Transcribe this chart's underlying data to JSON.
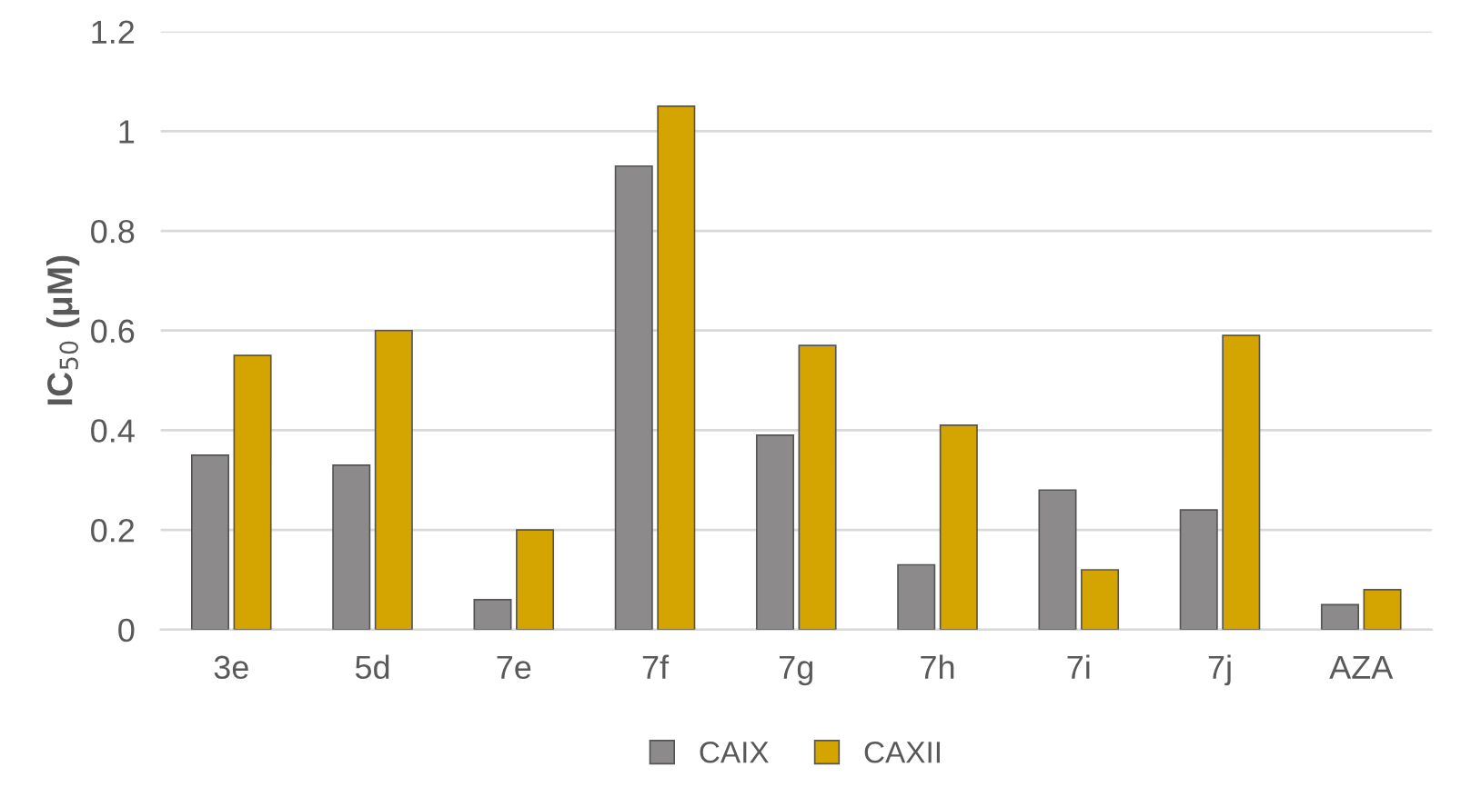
{
  "chart_data": {
    "type": "bar",
    "ylabel": "IC$_{50}$ (μM)",
    "categories": [
      "3e",
      "5d",
      "7e",
      "7f",
      "7g",
      "7h",
      "7i",
      "7j",
      "AZA"
    ],
    "series": [
      {
        "name": "CAIX",
        "color": "#8c8a8a",
        "values": [
          0.35,
          0.33,
          0.06,
          0.93,
          0.39,
          0.13,
          0.28,
          0.24,
          0.05
        ]
      },
      {
        "name": "CAXII",
        "color": "#d4a500",
        "values": [
          0.55,
          0.6,
          0.2,
          1.05,
          0.57,
          0.41,
          0.12,
          0.59,
          0.08
        ]
      }
    ],
    "ylim": [
      0,
      1.2
    ],
    "yticks": [
      0,
      0.2,
      0.4,
      0.6,
      0.8,
      1,
      1.2
    ],
    "grid": "y",
    "legend": "bottom"
  }
}
